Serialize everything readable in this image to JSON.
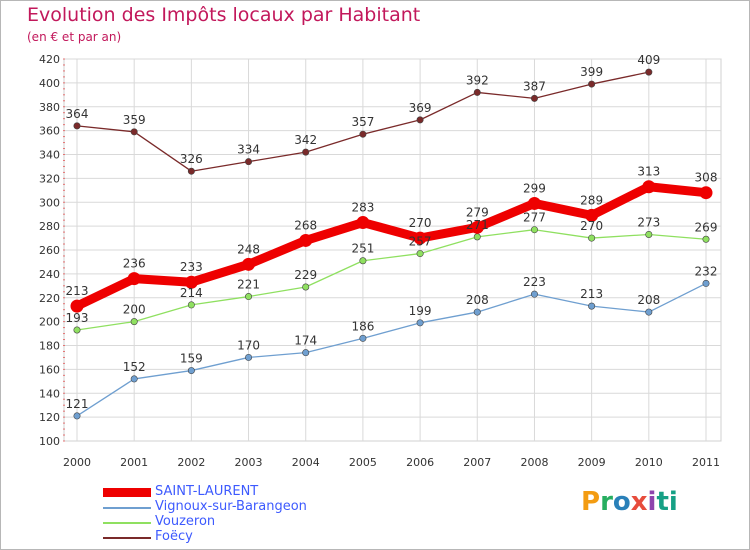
{
  "chart_data": {
    "type": "line",
    "title": "Evolution des Impôts locaux par Habitant",
    "subtitle": "(en € et par an)",
    "categories": [
      "2000",
      "2001",
      "2002",
      "2003",
      "2004",
      "2005",
      "2006",
      "2007",
      "2008",
      "2009",
      "2010",
      "2011"
    ],
    "ylim": [
      100,
      420
    ],
    "yticks": [
      100,
      120,
      140,
      160,
      180,
      200,
      220,
      240,
      260,
      280,
      300,
      320,
      340,
      360,
      380,
      400,
      420
    ],
    "grid": true,
    "legend_position": "bottom-left",
    "series": [
      {
        "name": "SAINT-LAURENT",
        "color": "#ee0000",
        "values": [
          213,
          236,
          233,
          248,
          268,
          283,
          270,
          279,
          299,
          289,
          313,
          308
        ]
      },
      {
        "name": "Vignoux-sur-Barangeon",
        "color": "#6f9fd0",
        "values": [
          121,
          152,
          159,
          170,
          174,
          186,
          199,
          208,
          223,
          213,
          208,
          232
        ]
      },
      {
        "name": "Vouzeron",
        "color": "#8fe060",
        "values": [
          193,
          200,
          214,
          221,
          229,
          251,
          257,
          271,
          277,
          270,
          273,
          269
        ]
      },
      {
        "name": "Foëcy",
        "color": "#7a2a2a",
        "values": [
          364,
          359,
          326,
          334,
          342,
          357,
          369,
          392,
          387,
          399,
          409,
          null
        ]
      }
    ]
  },
  "logo": {
    "text": "Proxiti",
    "parts": [
      "P",
      "r",
      "o",
      "x",
      "i",
      "ti"
    ]
  }
}
